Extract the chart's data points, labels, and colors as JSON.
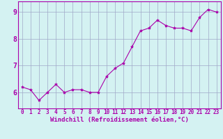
{
  "x": [
    0,
    1,
    2,
    3,
    4,
    5,
    6,
    7,
    8,
    9,
    10,
    11,
    12,
    13,
    14,
    15,
    16,
    17,
    18,
    19,
    20,
    21,
    22,
    23
  ],
  "y": [
    6.2,
    6.1,
    5.7,
    6.0,
    6.3,
    6.0,
    6.1,
    6.1,
    6.0,
    6.0,
    6.6,
    6.9,
    7.1,
    7.7,
    8.3,
    8.4,
    8.7,
    8.5,
    8.4,
    8.4,
    8.3,
    8.8,
    9.1,
    9.0
  ],
  "line_color": "#aa00aa",
  "marker": "*",
  "marker_size": 3,
  "xlabel": "Windchill (Refroidissement éolien,°C)",
  "xlim": [
    -0.5,
    23.5
  ],
  "ylim": [
    5.4,
    9.4
  ],
  "yticks": [
    6,
    7,
    8,
    9
  ],
  "xticks": [
    0,
    1,
    2,
    3,
    4,
    5,
    6,
    7,
    8,
    9,
    10,
    11,
    12,
    13,
    14,
    15,
    16,
    17,
    18,
    19,
    20,
    21,
    22,
    23
  ],
  "background_color": "#d4f2f2",
  "grid_color": "#a0a8c8",
  "tick_fontsize": 5.5,
  "xlabel_fontsize": 6.5,
  "ytick_fontsize": 7
}
